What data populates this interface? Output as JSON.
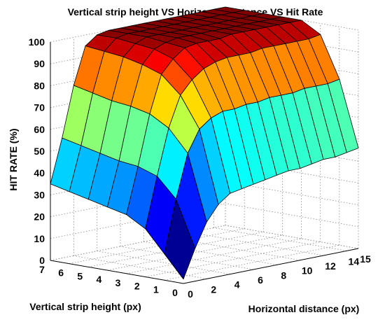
{
  "chart_data": {
    "type": "surface3d",
    "title": "Vertical strip height VS Horizontal distance VS Hit Rate",
    "xlabel": "Horizontal distance (px)",
    "ylabel": "Vertical strip height (px)",
    "zlabel": "HIT RATE (%)",
    "x_ticks": [
      "0",
      "2",
      "4",
      "6",
      "8",
      "10",
      "12",
      "14",
      "15"
    ],
    "y_ticks": [
      "0",
      "1",
      "2",
      "3",
      "4",
      "5",
      "6",
      "7"
    ],
    "z_ticks": [
      "0",
      "10",
      "20",
      "30",
      "40",
      "50",
      "60",
      "70",
      "80",
      "90",
      "100"
    ],
    "xlim": [
      0,
      15
    ],
    "ylim": [
      0,
      7
    ],
    "zlim": [
      0,
      100
    ],
    "grid": true,
    "colormap": "jet",
    "surface_x": [
      0,
      1,
      2,
      3,
      4,
      5,
      6,
      7,
      8,
      9,
      10,
      11,
      12,
      13,
      14,
      15
    ],
    "surface_y": [
      0,
      1,
      2,
      3,
      4,
      5,
      6,
      7
    ],
    "surface_z": [
      [
        2,
        15,
        26,
        33,
        37,
        38,
        39,
        40,
        41,
        42,
        42,
        43,
        44,
        44,
        45,
        46
      ],
      [
        12,
        36,
        56,
        66,
        70,
        72,
        72,
        73,
        73,
        74,
        74,
        74,
        75,
        75,
        75,
        76
      ],
      [
        22,
        45,
        66,
        80,
        86,
        90,
        92,
        93,
        93,
        93,
        94,
        94,
        94,
        94,
        94,
        95
      ],
      [
        27,
        48,
        71,
        88,
        94,
        98,
        99,
        99,
        99,
        100,
        100,
        100,
        100,
        100,
        100,
        100
      ],
      [
        29,
        49,
        73,
        91,
        97,
        99,
        100,
        100,
        100,
        100,
        100,
        100,
        100,
        100,
        100,
        100
      ],
      [
        31,
        51,
        74,
        93,
        98,
        100,
        100,
        100,
        100,
        100,
        100,
        100,
        100,
        100,
        100,
        100
      ],
      [
        33,
        53,
        76,
        94,
        99,
        100,
        100,
        100,
        100,
        100,
        100,
        100,
        100,
        100,
        100,
        100
      ],
      [
        35,
        55,
        78,
        95,
        99,
        100,
        100,
        100,
        100,
        100,
        100,
        100,
        100,
        100,
        100,
        100
      ]
    ]
  }
}
